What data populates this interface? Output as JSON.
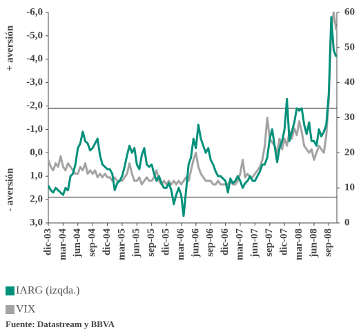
{
  "chart_data": {
    "type": "line",
    "y_label_top": "+ aversión",
    "y_label_bottom": "- aversión",
    "source": "Fuente: Datastream y BBVA",
    "categories": [
      "dic-03",
      null,
      null,
      null,
      null,
      null,
      "mar-04",
      null,
      null,
      null,
      null,
      null,
      "jun-04",
      null,
      null,
      null,
      null,
      null,
      "sep-04",
      null,
      null,
      null,
      null,
      null,
      "dic-04",
      null,
      null,
      null,
      null,
      null,
      "mar-05",
      null,
      null,
      null,
      null,
      null,
      "jun-05",
      null,
      null,
      null,
      null,
      null,
      "sep-05",
      null,
      null,
      null,
      null,
      null,
      "dic-05",
      null,
      null,
      null,
      null,
      null,
      "mar-06",
      null,
      null,
      null,
      null,
      null,
      "jun-06",
      null,
      null,
      null,
      null,
      null,
      "sep-06",
      null,
      null,
      null,
      null,
      null,
      "dic-06",
      null,
      null,
      null,
      null,
      null,
      "mar-07",
      null,
      null,
      null,
      null,
      null,
      "jun-07",
      null,
      null,
      null,
      null,
      null,
      "sep-07",
      null,
      null,
      null,
      null,
      null,
      "dic-07",
      null,
      null,
      null,
      null,
      null,
      "mar-08",
      null,
      null,
      null,
      null,
      null,
      "jun-08",
      null,
      null,
      null,
      null,
      null,
      "sep-08",
      null,
      null,
      null
    ],
    "series": [
      {
        "name": "IARG (izqda.)",
        "color": "#00907a",
        "axis": "y",
        "values": [
          1.4,
          1.6,
          1.7,
          1.5,
          1.6,
          1.7,
          1.8,
          1.5,
          1.6,
          1.0,
          0.9,
          0.5,
          -0.2,
          -0.4,
          -0.9,
          -0.5,
          -0.4,
          -0.1,
          -0.2,
          -0.4,
          -0.6,
          0.1,
          0.5,
          0.6,
          0.7,
          0.7,
          0.9,
          1.6,
          1.3,
          1.2,
          1.0,
          0.6,
          0.1,
          -0.3,
          0.0,
          -0.2,
          0.5,
          0.7,
          0.1,
          -0.2,
          0.5,
          0.6,
          0.5,
          0.9,
          1.2,
          1.0,
          1.3,
          1.5,
          1.5,
          1.3,
          1.6,
          2.2,
          1.8,
          1.5,
          1.8,
          2.7,
          1.6,
          0.5,
          0.2,
          -0.6,
          -0.2,
          -1.2,
          -0.6,
          -0.3,
          0.0,
          -0.2,
          0.3,
          0.5,
          0.8,
          1.0,
          1.0,
          1.1,
          1.2,
          1.7,
          1.1,
          1.3,
          1.2,
          1.0,
          1.2,
          1.5,
          1.3,
          1.2,
          1.0,
          1.2,
          1.2,
          1.0,
          0.8,
          0.5,
          0.5,
          0.2,
          -0.6,
          -1.0,
          -0.3,
          0.4,
          -0.2,
          -0.5,
          -1.0,
          -2.3,
          -0.5,
          -0.9,
          -1.3,
          -1.9,
          -1.8,
          -1.9,
          -1.2,
          -0.8,
          -1.3,
          -0.5,
          -0.5,
          -0.3,
          -1.0,
          -0.7,
          -0.9,
          -1.2,
          -2.5,
          -5.8,
          -4.4,
          -4.1
        ]
      },
      {
        "name": "VIX",
        "color": "#a3a3a3",
        "axis": "y2",
        "values": [
          18,
          16,
          15,
          17,
          16,
          19,
          16,
          15,
          17,
          16,
          15,
          14,
          14,
          16,
          15,
          17,
          14,
          15,
          14,
          15,
          13,
          14,
          13,
          14,
          13,
          13,
          12,
          13,
          12,
          12,
          12,
          13,
          14,
          17,
          14,
          12,
          12,
          13,
          11,
          12,
          13,
          12,
          12,
          13,
          15,
          12,
          11,
          12,
          11,
          12,
          11,
          12,
          11,
          12,
          11,
          12,
          13,
          12,
          15,
          18,
          20,
          16,
          14,
          13,
          12,
          12,
          12,
          11,
          11,
          12,
          11,
          11,
          11,
          11,
          12,
          11,
          11,
          12,
          14,
          18,
          13,
          14,
          13,
          13,
          14,
          15,
          16,
          18,
          22,
          30,
          24,
          23,
          22,
          20,
          24,
          21,
          24,
          22,
          26,
          24,
          27,
          25,
          29,
          26,
          22,
          21,
          20,
          21,
          18,
          20,
          22,
          21,
          20,
          25,
          35,
          55,
          60,
          55
        ]
      }
    ],
    "ylim": [
      3,
      -6
    ],
    "yticks": [
      {
        "value": -6,
        "label": "-6,0"
      },
      {
        "value": -5,
        "label": "-5,0"
      },
      {
        "value": -4,
        "label": "-4,0"
      },
      {
        "value": -3,
        "label": "-3,0"
      },
      {
        "value": -2,
        "label": "-2,0"
      },
      {
        "value": -1,
        "label": "-1,0"
      },
      {
        "value": 0,
        "label": "0,0"
      },
      {
        "value": 1,
        "label": "1,0"
      },
      {
        "value": 2,
        "label": "2,0"
      },
      {
        "value": 3,
        "label": "3,0"
      }
    ],
    "y2lim": [
      0,
      60
    ],
    "y2ticks": [
      0,
      10,
      20,
      30,
      40,
      50,
      60
    ],
    "reference_lines": [
      -1.9,
      1.9
    ]
  }
}
